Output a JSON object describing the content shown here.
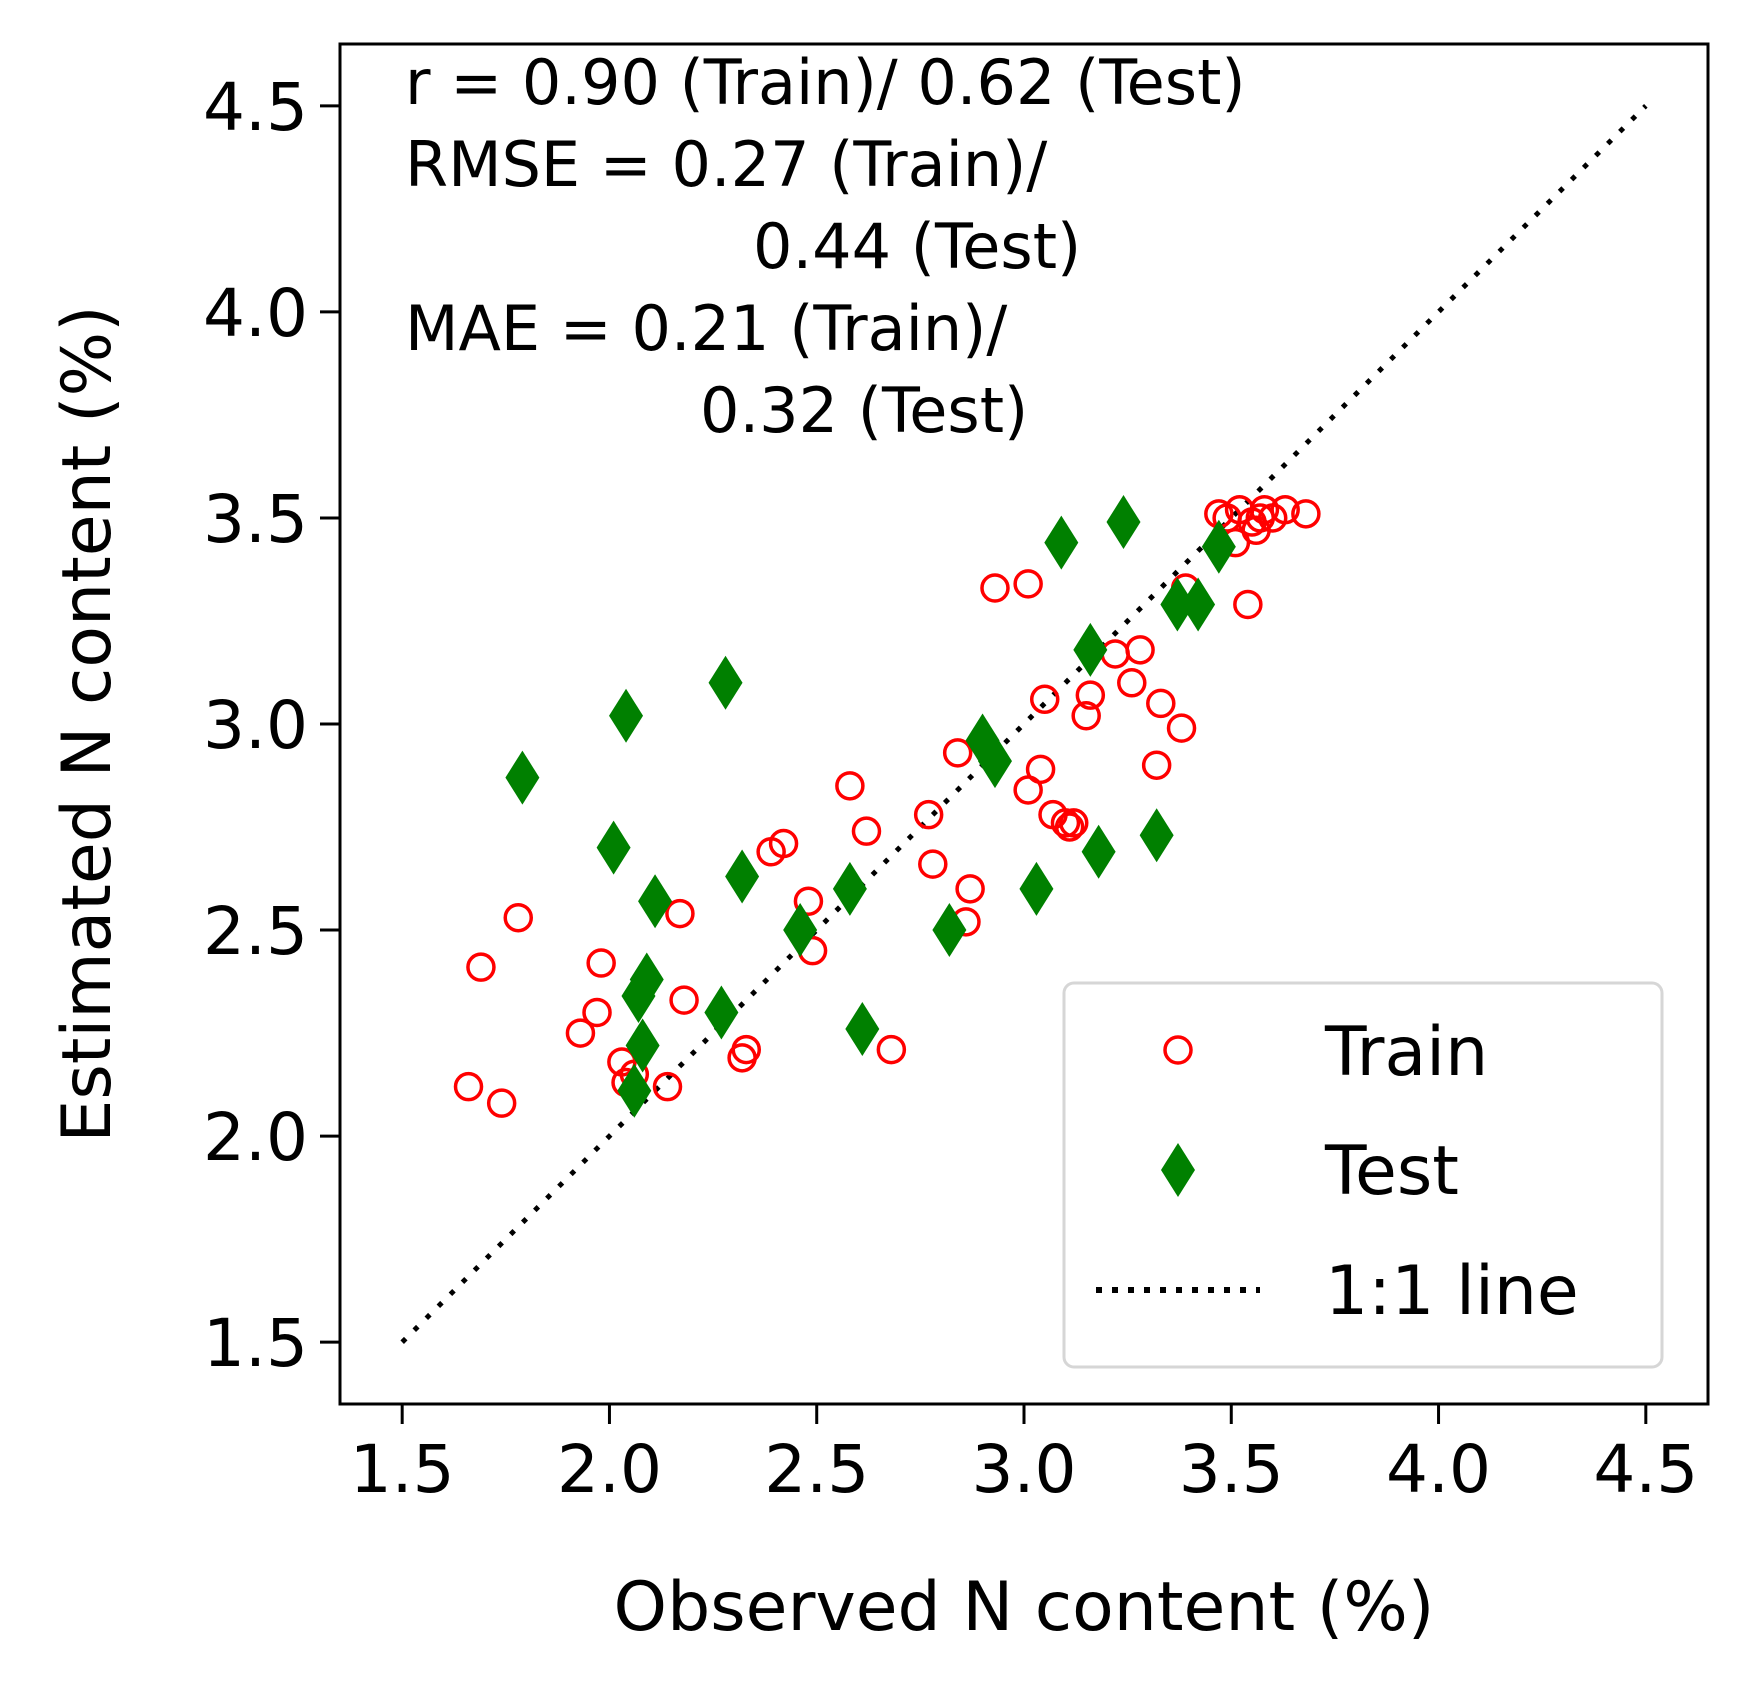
{
  "chart_data": {
    "type": "scatter",
    "xlabel": "Observed N content (%)",
    "ylabel": "Estimated N content (%)",
    "xlim": [
      1.35,
      4.65
    ],
    "ylim": [
      1.35,
      4.65
    ],
    "xticks": [
      "1.5",
      "2.0",
      "2.5",
      "3.0",
      "3.5",
      "4.0",
      "4.5"
    ],
    "yticks": [
      "1.5",
      "2.0",
      "2.5",
      "3.0",
      "3.5",
      "4.0",
      "4.5"
    ],
    "grid": false,
    "legend_position": "lower-right",
    "stats_text": [
      "r = 0.90 (Train)/ 0.62 (Test)",
      "RMSE = 0.27 (Train)/",
      "0.44 (Test)",
      "MAE = 0.21 (Train)/",
      "0.32 (Test)"
    ],
    "series": [
      {
        "name": "Train",
        "marker": "open-circle",
        "color": "#ff0000",
        "points": [
          [
            1.66,
            2.12
          ],
          [
            1.69,
            2.41
          ],
          [
            1.74,
            2.08
          ],
          [
            1.78,
            2.53
          ],
          [
            1.93,
            2.25
          ],
          [
            1.97,
            2.3
          ],
          [
            1.98,
            2.42
          ],
          [
            2.03,
            2.18
          ],
          [
            2.04,
            2.13
          ],
          [
            2.06,
            2.15
          ],
          [
            2.14,
            2.12
          ],
          [
            2.17,
            2.54
          ],
          [
            2.18,
            2.33
          ],
          [
            2.32,
            2.19
          ],
          [
            2.33,
            2.21
          ],
          [
            2.39,
            2.69
          ],
          [
            2.42,
            2.71
          ],
          [
            2.48,
            2.57
          ],
          [
            2.49,
            2.45
          ],
          [
            2.58,
            2.85
          ],
          [
            2.62,
            2.74
          ],
          [
            2.68,
            2.21
          ],
          [
            2.77,
            2.78
          ],
          [
            2.78,
            2.66
          ],
          [
            2.84,
            2.93
          ],
          [
            2.86,
            2.52
          ],
          [
            2.87,
            2.6
          ],
          [
            2.93,
            3.33
          ],
          [
            3.01,
            3.34
          ],
          [
            3.01,
            2.84
          ],
          [
            3.04,
            2.89
          ],
          [
            3.05,
            3.06
          ],
          [
            3.07,
            2.78
          ],
          [
            3.1,
            2.76
          ],
          [
            3.11,
            2.75
          ],
          [
            3.12,
            2.76
          ],
          [
            3.15,
            3.02
          ],
          [
            3.16,
            3.07
          ],
          [
            3.22,
            3.17
          ],
          [
            3.26,
            3.1
          ],
          [
            3.28,
            3.18
          ],
          [
            3.32,
            2.9
          ],
          [
            3.33,
            3.05
          ],
          [
            3.38,
            2.99
          ],
          [
            3.39,
            3.33
          ],
          [
            3.47,
            3.51
          ],
          [
            3.49,
            3.5
          ],
          [
            3.51,
            3.44
          ],
          [
            3.52,
            3.52
          ],
          [
            3.54,
            3.29
          ],
          [
            3.55,
            3.49
          ],
          [
            3.56,
            3.47
          ],
          [
            3.57,
            3.5
          ],
          [
            3.58,
            3.52
          ],
          [
            3.6,
            3.5
          ],
          [
            3.63,
            3.52
          ],
          [
            3.68,
            3.51
          ]
        ]
      },
      {
        "name": "Test",
        "marker": "thin-diamond",
        "color": "#008000",
        "points": [
          [
            1.79,
            2.87
          ],
          [
            2.01,
            2.7
          ],
          [
            2.04,
            3.02
          ],
          [
            2.06,
            2.11
          ],
          [
            2.07,
            2.34
          ],
          [
            2.08,
            2.22
          ],
          [
            2.09,
            2.38
          ],
          [
            2.11,
            2.57
          ],
          [
            2.27,
            2.3
          ],
          [
            2.28,
            3.1
          ],
          [
            2.32,
            2.63
          ],
          [
            2.46,
            2.5
          ],
          [
            2.58,
            2.6
          ],
          [
            2.61,
            2.26
          ],
          [
            2.82,
            2.5
          ],
          [
            2.9,
            2.96
          ],
          [
            2.93,
            2.91
          ],
          [
            3.03,
            2.6
          ],
          [
            3.09,
            3.44
          ],
          [
            3.16,
            3.18
          ],
          [
            3.18,
            2.69
          ],
          [
            3.24,
            3.49
          ],
          [
            3.32,
            2.73
          ],
          [
            3.37,
            3.29
          ],
          [
            3.42,
            3.29
          ],
          [
            3.47,
            3.43
          ]
        ]
      },
      {
        "name": "1:1 line",
        "marker": "dotted-line",
        "color": "#000000",
        "points": [
          [
            1.5,
            1.5
          ],
          [
            4.5,
            4.5
          ]
        ]
      }
    ]
  }
}
